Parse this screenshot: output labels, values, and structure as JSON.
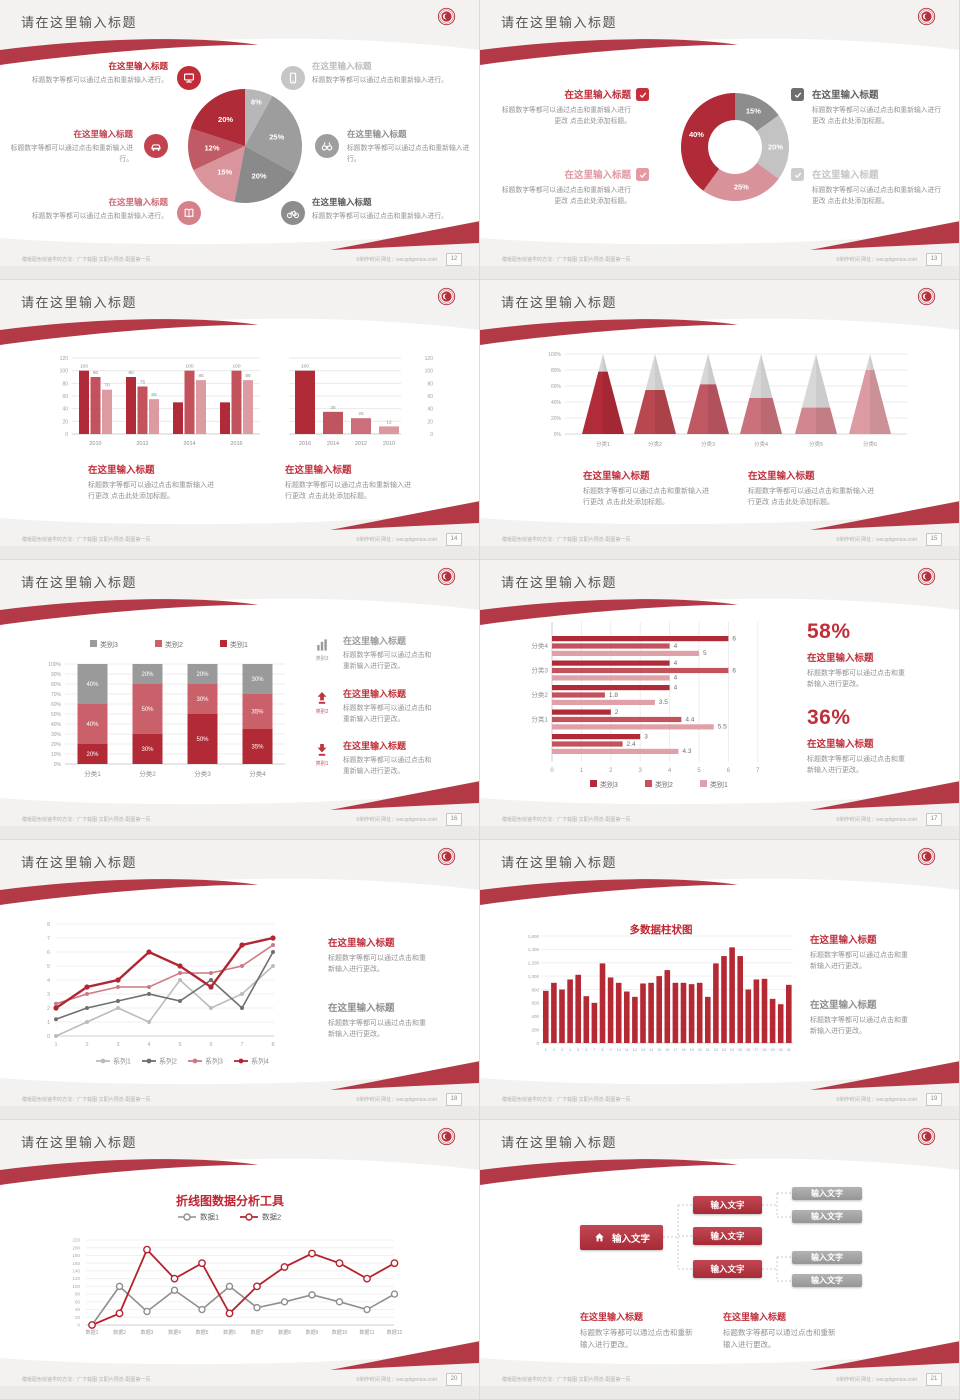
{
  "strings": {
    "slide_title": "请在这里输入标题",
    "callout_title": "在这里输入标题",
    "body_short": "标题数字等都可以通过点击和重新输入进行。",
    "body_change": "标题数字等都可以通过点击和重新输入进行更改 点击此处添加标题。",
    "body_simple": "标题数字等都可以通过点击和重新输入进行更改。",
    "input_text": "输入文字",
    "pct_58": "58%",
    "pct_36": "36%"
  },
  "footer": {
    "left": "模板配色快速学的方法：厂下载图·文配片预览·配图第一页",
    "right": "©制作时间 网址：ww.pptgenius.com"
  },
  "pages": {
    "s12": "12",
    "s13": "13",
    "s14": "14",
    "s15": "15",
    "s16": "16",
    "s17": "17",
    "s18": "18",
    "s19": "19",
    "s20": "20",
    "s21": "21"
  },
  "colors": {
    "accent_red": "#b02b37",
    "ribbon_red": "#b23945",
    "mid_red": "#c4525c",
    "light_pink": "#dc9aa1",
    "gray_dark": "#8a8a8a",
    "gray_mid": "#9d9d9d",
    "gray_light": "#b7b7b7"
  },
  "chart_data": [
    {
      "id": "c12",
      "slide_page": "12",
      "type": "pie",
      "values": [
        8,
        25,
        20,
        15,
        12,
        20
      ],
      "labels": [
        "8%",
        "25%",
        "20%",
        "15%",
        "12%",
        "20%"
      ],
      "colors": [
        "#b7b7b7",
        "#9d9d9d",
        "#8a8a8a",
        "#d9949c",
        "#c05b65",
        "#ae2b37"
      ]
    },
    {
      "id": "c13",
      "slide_page": "13",
      "type": "pie",
      "subtype": "donut",
      "values": [
        15,
        20,
        25,
        40
      ],
      "labels": [
        "15%",
        "20%",
        "25%",
        "40%"
      ],
      "colors": [
        "#8d8d8d",
        "#c3c3c3",
        "#d9929a",
        "#b02b37"
      ]
    },
    {
      "id": "c14a",
      "slide_page": "14",
      "type": "bar",
      "categories": [
        "2010",
        "2012",
        "2014",
        "2016"
      ],
      "ylim": [
        0,
        120
      ],
      "yticks": [
        0,
        20,
        40,
        60,
        80,
        100,
        120
      ],
      "series": [
        {
          "values": [
            100,
            90,
            50,
            50
          ],
          "labels": [
            "100",
            "90",
            "",
            ""
          ],
          "color": "#b02b37"
        },
        {
          "values": [
            90,
            75,
            100,
            100
          ],
          "labels": [
            "90",
            "75",
            "100",
            "100"
          ],
          "color": "#c4525c"
        },
        {
          "values": [
            70,
            55,
            85,
            85
          ],
          "labels": [
            "70",
            "55",
            "85",
            "85"
          ],
          "color": "#dc9aa1"
        }
      ]
    },
    {
      "id": "c14b",
      "slide_page": "14",
      "type": "bar",
      "categories": [
        "2016",
        "2014",
        "2012",
        "2010"
      ],
      "ylim": [
        0,
        120
      ],
      "yticks": [
        0,
        20,
        40,
        60,
        80,
        100,
        120
      ],
      "values": [
        100,
        35,
        25,
        12
      ],
      "labels": [
        "100",
        "35",
        "25",
        "12"
      ],
      "colors": [
        "#b02b37",
        "#c05560",
        "#cb707a",
        "#da98a0"
      ]
    },
    {
      "id": "c15",
      "slide_page": "15",
      "type": "pyramid",
      "categories": [
        "分类1",
        "分类2",
        "分类3",
        "分类4",
        "分类5",
        "分类6"
      ],
      "fill_percent": [
        78,
        55,
        62,
        45,
        33,
        80
      ],
      "ylim": [
        0,
        100
      ],
      "yticks": [
        "0%",
        "20%",
        "40%",
        "60%",
        "80%",
        "100%"
      ],
      "colors": [
        "#b12c38",
        "#b94750",
        "#c05863",
        "#ca717b",
        "#d28790",
        "#dc9ba3"
      ]
    },
    {
      "id": "c16",
      "slide_page": "16",
      "type": "bar",
      "subtype": "stacked-100",
      "categories": [
        "分类1",
        "分类2",
        "分类3",
        "分类4"
      ],
      "series": [
        {
          "name": "类别1",
          "color": "#b22a36",
          "values": [
            20,
            30,
            50,
            35
          ]
        },
        {
          "name": "类别2",
          "color": "#c9606a",
          "values": [
            40,
            50,
            30,
            35
          ]
        },
        {
          "name": "类别3",
          "color": "#9a9a9a",
          "values": [
            40,
            20,
            20,
            30
          ]
        }
      ],
      "legend_order": [
        "类别3",
        "类别2",
        "类别1"
      ]
    },
    {
      "id": "c17",
      "slide_page": "17",
      "type": "bar",
      "subtype": "horizontal",
      "xlim": [
        0,
        7
      ],
      "xticks": [
        0,
        1,
        2,
        3,
        4,
        5,
        6,
        7
      ],
      "groups": [
        "分类4",
        "分类3",
        "分类2",
        "分类1",
        ""
      ],
      "series": [
        {
          "name": "类别3",
          "color": "#b02b37",
          "values": [
            6,
            4,
            4,
            2,
            3
          ]
        },
        {
          "name": "类别2",
          "color": "#c4525c",
          "values": [
            4,
            6,
            1.8,
            4.4,
            2.4
          ]
        },
        {
          "name": "类别1",
          "color": "#dfa0a7",
          "values": [
            5,
            4,
            3.5,
            5.5,
            4.3
          ]
        }
      ]
    },
    {
      "id": "c18",
      "slide_page": "18",
      "type": "line",
      "x": [
        1,
        2,
        3,
        4,
        5,
        6,
        7,
        8
      ],
      "ylim": [
        0,
        8
      ],
      "series": [
        {
          "name": "系列1",
          "color": "#bcbcbc",
          "values": [
            0,
            1,
            2,
            1,
            4,
            2,
            3,
            5
          ]
        },
        {
          "name": "系列2",
          "color": "#6f6f6f",
          "values": [
            1.2,
            2,
            2.5,
            3,
            2.5,
            4,
            2,
            6
          ]
        },
        {
          "name": "系列3",
          "color": "#cc7a83",
          "values": [
            2.3,
            3,
            3.5,
            3.5,
            4.5,
            4.5,
            5,
            6.5
          ]
        },
        {
          "name": "系列4",
          "color": "#b02633",
          "values": [
            2,
            3.5,
            4,
            6,
            5,
            3.5,
            6.5,
            7
          ]
        }
      ]
    },
    {
      "id": "c19",
      "slide_page": "19",
      "type": "bar",
      "title": "多数据柱状图",
      "categories": [
        "1",
        "2",
        "3",
        "4",
        "5",
        "6",
        "7",
        "8",
        "9",
        "10",
        "11",
        "12",
        "13",
        "14",
        "15",
        "16",
        "17",
        "18",
        "19",
        "20",
        "21",
        "22",
        "23",
        "24",
        "25",
        "26",
        "27",
        "28",
        "29",
        "30",
        "31"
      ],
      "values": [
        780,
        900,
        800,
        950,
        1020,
        700,
        600,
        1190,
        980,
        900,
        770,
        690,
        890,
        900,
        1000,
        1090,
        900,
        900,
        880,
        900,
        690,
        1190,
        1300,
        1430,
        1300,
        800,
        950,
        960,
        660,
        580,
        870
      ],
      "ylim": [
        0,
        1600
      ],
      "ytick_labels": [
        "0",
        "200",
        "400",
        "600",
        "800",
        "1,000",
        "1,200",
        "1,400",
        "1,600"
      ],
      "color": "#b42934"
    },
    {
      "id": "c20",
      "slide_page": "20",
      "type": "line",
      "title": "折线图数据分析工具",
      "categories": [
        "数据1",
        "数据2",
        "数据3",
        "数据4",
        "数据5",
        "数据6",
        "数据7",
        "数据8",
        "数据9",
        "数据10",
        "数据11",
        "数据12"
      ],
      "ylim": [
        0,
        220
      ],
      "ytick_step": 20,
      "series": [
        {
          "name": "数据1",
          "color": "#8f8f8f",
          "values": [
            0,
            100,
            35,
            90,
            40,
            100,
            45,
            60,
            78,
            60,
            40,
            80
          ]
        },
        {
          "name": "数据2",
          "color": "#b5232f",
          "values": [
            0,
            30,
            195,
            120,
            160,
            30,
            100,
            150,
            185,
            160,
            120,
            160
          ]
        }
      ]
    },
    {
      "id": "c21",
      "slide_page": "21",
      "type": "tree",
      "root": "输入文字",
      "level2": [
        "输入文字",
        "输入文字",
        "输入文字"
      ],
      "level3": [
        "输入文字",
        "输入文字",
        "输入文字",
        "输入文字"
      ]
    }
  ]
}
